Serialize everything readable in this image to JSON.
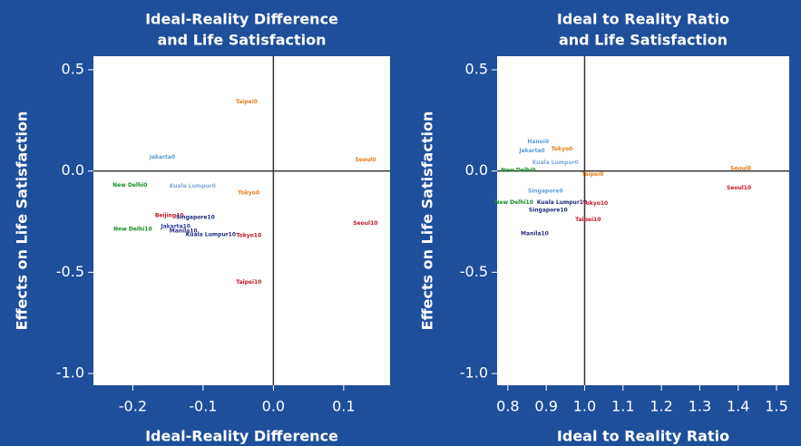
{
  "chart_data": [
    {
      "type": "scatter",
      "title": [
        "Ideal-Reality Difference",
        "and Life Satisfaction"
      ],
      "xlabel": "Ideal-Reality Difference",
      "ylabel": "Effects on Life Satisfaction",
      "xlim": [
        -0.256,
        0.166
      ],
      "ylim": [
        -1.058,
        0.567
      ],
      "xticks": [
        -0.2,
        -0.1,
        {
          "value": 0,
          "label": "0.0"
        },
        0.1
      ],
      "yticks": [
        {
          "value": -1,
          "label": "-1.0"
        },
        -0.5,
        {
          "value": 0,
          "label": "0.0"
        },
        0.5
      ],
      "reference_lines": {
        "x": 0,
        "y": 0
      },
      "points": [
        {
          "label": "Taipei0",
          "x": -0.038,
          "y": 0.34,
          "color": "#e07b1a"
        },
        {
          "label": "Seoul0",
          "x": 0.131,
          "y": 0.054,
          "color": "#e07b1a"
        },
        {
          "label": "Jakarta0",
          "x": -0.158,
          "y": 0.067,
          "color": "#5b9bd5"
        },
        {
          "label": "New Delhi0",
          "x": -0.204,
          "y": -0.07,
          "color": "#1a8a2a"
        },
        {
          "label": "Kuala Lumpur0",
          "x": -0.115,
          "y": -0.076,
          "color": "#7fa8d8"
        },
        {
          "label": "Tokyo0",
          "x": -0.035,
          "y": -0.11,
          "color": "#e07b1a"
        },
        {
          "label": "Beijing10",
          "x": -0.148,
          "y": -0.22,
          "color": "#c0142a"
        },
        {
          "label": "Singapore10",
          "x": -0.111,
          "y": -0.229,
          "color": "#1a2a80"
        },
        {
          "label": "Jakarta10",
          "x": -0.139,
          "y": -0.274,
          "color": "#2a3a9a"
        },
        {
          "label": "New Delhi10",
          "x": -0.2,
          "y": -0.287,
          "color": "#1a8a2a"
        },
        {
          "label": "Manila10",
          "x": -0.128,
          "y": -0.296,
          "color": "#2a2a80"
        },
        {
          "label": "Kuala Lumpur10",
          "x": -0.089,
          "y": -0.314,
          "color": "#1a2a80"
        },
        {
          "label": "Tokyo10",
          "x": -0.035,
          "y": -0.32,
          "color": "#c0142a"
        },
        {
          "label": "Seoul10",
          "x": 0.131,
          "y": -0.26,
          "color": "#c0142a"
        },
        {
          "label": "Taipei10",
          "x": -0.035,
          "y": -0.55,
          "color": "#c0142a"
        }
      ]
    },
    {
      "type": "scatter",
      "title": [
        "Ideal to Reality Ratio",
        "and Life Satisfaction"
      ],
      "xlabel": "Ideal to Reality Ratio",
      "ylabel": "Effects on Life Satisfaction",
      "xlim": [
        0.772,
        1.533
      ],
      "ylim": [
        -1.058,
        0.567
      ],
      "xticks": [
        0.8,
        0.9,
        {
          "value": 1,
          "label": "1.0"
        },
        1.1,
        1.2,
        1.3,
        1.4,
        1.5
      ],
      "yticks": [
        {
          "value": -1,
          "label": "-1.0"
        },
        -0.5,
        {
          "value": 0,
          "label": "0.0"
        },
        0.5
      ],
      "reference_lines": {
        "x": 1,
        "y": 0
      },
      "points": [
        {
          "label": "Hanoi0",
          "x": 0.879,
          "y": 0.143,
          "color": "#5b9bd5"
        },
        {
          "label": "Tokyo0",
          "x": 0.941,
          "y": 0.108,
          "color": "#e07b1a"
        },
        {
          "label": "Jakarta0",
          "x": 0.863,
          "y": 0.099,
          "color": "#5b9bd5"
        },
        {
          "label": "Kuala Lumpur0",
          "x": 0.924,
          "y": 0.04,
          "color": "#7fa8d8"
        },
        {
          "label": "Seoul0",
          "x": 1.407,
          "y": 0.013,
          "color": "#e07b1a"
        },
        {
          "label": "New Delhi0",
          "x": 0.827,
          "y": 0.004,
          "color": "#1a8a2a"
        },
        {
          "label": "Taipei0",
          "x": 1.021,
          "y": -0.018,
          "color": "#e07b1a"
        },
        {
          "label": "Seoul10",
          "x": 1.402,
          "y": -0.085,
          "color": "#c0142a"
        },
        {
          "label": "Singapore0",
          "x": 0.898,
          "y": -0.099,
          "color": "#5b9bd5"
        },
        {
          "label": "New Delhi10",
          "x": 0.816,
          "y": -0.157,
          "color": "#1a8a2a"
        },
        {
          "label": "Kuala Lumpur10",
          "x": 0.941,
          "y": -0.157,
          "color": "#1a2a80"
        },
        {
          "label": "Tokyo10",
          "x": 1.028,
          "y": -0.161,
          "color": "#c0142a"
        },
        {
          "label": "Singapore10",
          "x": 0.905,
          "y": -0.193,
          "color": "#1a2a80"
        },
        {
          "label": "Taipei10",
          "x": 1.009,
          "y": -0.242,
          "color": "#c0142a"
        },
        {
          "label": "Manila10",
          "x": 0.87,
          "y": -0.31,
          "color": "#2a2a80"
        }
      ]
    }
  ]
}
